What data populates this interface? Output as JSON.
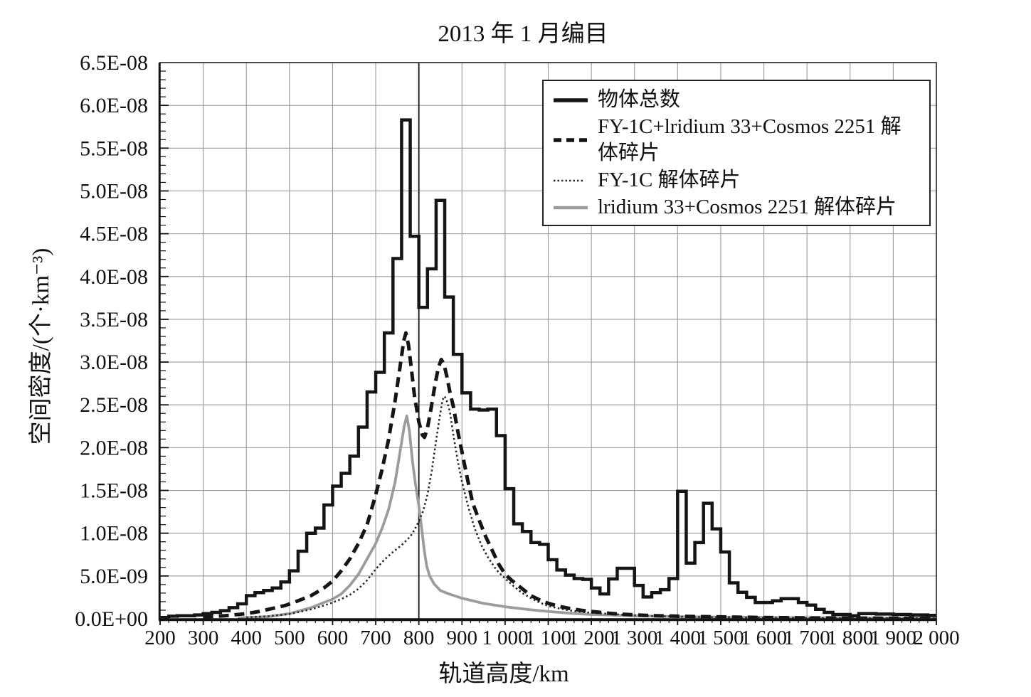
{
  "title": "2013 年 1 月编目",
  "axes": {
    "xlabel": "轨道高度/km",
    "ylabel": "空间密度/(个·km⁻³)",
    "x_tick_labels": [
      "200",
      "300",
      "400",
      "500",
      "600",
      "700",
      "800",
      "900",
      "1 000",
      "1 100",
      "1 200",
      "1 300",
      "1 400",
      "1 500",
      "1 600",
      "1 700",
      "1 800",
      "1 900",
      "2 000"
    ],
    "y_tick_labels": [
      "0.0E+00",
      "5.0E-09",
      "1.0E-08",
      "1.5E-08",
      "2.0E-08",
      "2.5E-08",
      "3.0E-08",
      "3.5E-08",
      "4.0E-08",
      "4.5E-08",
      "5.0E-08",
      "5.5E-08",
      "6.0E-08",
      "6.5E-08"
    ]
  },
  "legend": {
    "items": [
      {
        "label": "物体总数",
        "series": "total"
      },
      {
        "label": "FY-1C+lridium 33+Cosmos 2251 解体碎片",
        "series": "combined_fragments"
      },
      {
        "label": "FY-1C 解体碎片",
        "series": "fy1c_fragments"
      },
      {
        "label": "lridium 33+Cosmos 2251 解体碎片",
        "series": "iridium_cosmos_fragments"
      }
    ]
  },
  "colors": {
    "black": "#151515",
    "gray_line": "#9c9c9c",
    "grid": "#9a9a9a",
    "reference_line": "#111111"
  },
  "chart_data": {
    "type": "line",
    "title": "2013 年 1 月编目",
    "xlabel": "轨道高度/km",
    "ylabel": "空间密度/(个·km⁻³)",
    "xlim": [
      200,
      2000
    ],
    "ylim": [
      0,
      6.5e-08
    ],
    "x_major_tick_km": 100,
    "x_minor_tick_km": 20,
    "y_major_tick": 5e-09,
    "y_minor_tick": 1e-09,
    "grid": true,
    "legend_position": "top-right",
    "reference_vline_km": 800,
    "value_scale": 1e-09,
    "series": [
      {
        "name": "物体总数",
        "style": "step",
        "color": "#151515",
        "bin_start_km": 200,
        "bin_width_km": 20,
        "values_1e9": [
          0.15,
          0.3,
          0.35,
          0.35,
          0.45,
          0.6,
          0.75,
          0.95,
          1.3,
          1.75,
          2.7,
          3.05,
          3.3,
          3.6,
          4.3,
          5.6,
          7.9,
          10,
          10.6,
          13.3,
          15.5,
          17,
          19,
          22.4,
          26.5,
          28.8,
          33.4,
          42.1,
          58.3,
          44.7,
          36.4,
          40.9,
          48.9,
          37.6,
          30.9,
          26.4,
          24.5,
          24.4,
          24.5,
          21.4,
          15.2,
          11.1,
          10.2,
          8.9,
          8.7,
          6.9,
          5.7,
          5.1,
          4.7,
          4.6,
          3.6,
          2.9,
          4.65,
          5.9,
          5.9,
          3.9,
          2.55,
          3.05,
          3.4,
          4.7,
          14.9,
          6.5,
          8.9,
          13.5,
          10.5,
          7.8,
          4.2,
          3.1,
          2.5,
          1.9,
          1.9,
          2.1,
          2.35,
          2.35,
          1.9,
          1.6,
          1.1,
          0.75,
          0.5,
          0.5,
          0.35,
          0.6,
          0.6,
          0.55,
          0.55,
          0.5,
          0.5,
          0.45,
          0.45,
          0.4
        ]
      },
      {
        "name": "FY-1C+lridium 33+Cosmos 2251 解体碎片",
        "style": "dashed",
        "color": "#151515",
        "points_km_1e9": [
          [
            300,
            0.2
          ],
          [
            350,
            0.35
          ],
          [
            400,
            0.6
          ],
          [
            430,
            0.85
          ],
          [
            460,
            1.2
          ],
          [
            490,
            1.55
          ],
          [
            520,
            2.1
          ],
          [
            550,
            2.7
          ],
          [
            580,
            3.6
          ],
          [
            600,
            4.4
          ],
          [
            620,
            5.6
          ],
          [
            640,
            7
          ],
          [
            660,
            8.8
          ],
          [
            680,
            11
          ],
          [
            700,
            14.5
          ],
          [
            715,
            17.5
          ],
          [
            730,
            21
          ],
          [
            745,
            25.5
          ],
          [
            758,
            30
          ],
          [
            765,
            32.5
          ],
          [
            770,
            33.4
          ],
          [
            776,
            32
          ],
          [
            782,
            29.5
          ],
          [
            790,
            26
          ],
          [
            800,
            23
          ],
          [
            808,
            21.5
          ],
          [
            813,
            21.2
          ],
          [
            820,
            22.3
          ],
          [
            828,
            24.5
          ],
          [
            838,
            27.5
          ],
          [
            845,
            29.3
          ],
          [
            852,
            30.3
          ],
          [
            858,
            29.8
          ],
          [
            865,
            28.3
          ],
          [
            872,
            26.5
          ],
          [
            880,
            24.8
          ],
          [
            890,
            22
          ],
          [
            900,
            19.5
          ],
          [
            912,
            16.5
          ],
          [
            925,
            13.5
          ],
          [
            940,
            11.5
          ],
          [
            955,
            9.6
          ],
          [
            970,
            8
          ],
          [
            985,
            6.4
          ],
          [
            1000,
            5.2
          ],
          [
            1015,
            4.5
          ],
          [
            1030,
            3.9
          ],
          [
            1045,
            3.3
          ],
          [
            1060,
            2.7
          ],
          [
            1080,
            2.2
          ],
          [
            1100,
            1.8
          ],
          [
            1125,
            1.45
          ],
          [
            1150,
            1.2
          ],
          [
            1175,
            1
          ],
          [
            1200,
            0.85
          ],
          [
            1250,
            0.6
          ],
          [
            1300,
            0.45
          ],
          [
            1350,
            0.35
          ],
          [
            1400,
            0.3
          ],
          [
            1450,
            0.25
          ],
          [
            1500,
            0.22
          ],
          [
            1550,
            0.18
          ],
          [
            1600,
            0.15
          ],
          [
            1650,
            0.12
          ],
          [
            1700,
            0.1
          ],
          [
            1750,
            0.09
          ],
          [
            1800,
            0.08
          ],
          [
            1850,
            0.07
          ],
          [
            1900,
            0.06
          ],
          [
            1950,
            0.055
          ],
          [
            2000,
            0.05
          ]
        ]
      },
      {
        "name": "FY-1C 解体碎片",
        "style": "dotted",
        "color": "#2a2a2a",
        "points_km_1e9": [
          [
            400,
            0.15
          ],
          [
            450,
            0.3
          ],
          [
            500,
            0.55
          ],
          [
            550,
            1.1
          ],
          [
            580,
            1.55
          ],
          [
            600,
            1.9
          ],
          [
            620,
            2.3
          ],
          [
            640,
            2.8
          ],
          [
            660,
            3.5
          ],
          [
            680,
            4.5
          ],
          [
            700,
            5.8
          ],
          [
            720,
            6.9
          ],
          [
            740,
            7.8
          ],
          [
            760,
            8.6
          ],
          [
            780,
            9.6
          ],
          [
            790,
            10.4
          ],
          [
            800,
            11.4
          ],
          [
            810,
            12.6
          ],
          [
            820,
            14.5
          ],
          [
            830,
            17.3
          ],
          [
            840,
            20.8
          ],
          [
            848,
            23.5
          ],
          [
            855,
            25.6
          ],
          [
            860,
            26
          ],
          [
            866,
            25.3
          ],
          [
            872,
            24.2
          ],
          [
            880,
            21.5
          ],
          [
            890,
            18.5
          ],
          [
            900,
            16
          ],
          [
            915,
            13
          ],
          [
            930,
            10.5
          ],
          [
            945,
            8.6
          ],
          [
            960,
            7.2
          ],
          [
            980,
            5.7
          ],
          [
            1000,
            4.7
          ],
          [
            1020,
            3.8
          ],
          [
            1040,
            3
          ],
          [
            1060,
            2.4
          ],
          [
            1080,
            1.9
          ],
          [
            1100,
            1.5
          ],
          [
            1130,
            1.15
          ],
          [
            1160,
            0.9
          ],
          [
            1200,
            0.7
          ],
          [
            1250,
            0.55
          ],
          [
            1300,
            0.4
          ],
          [
            1350,
            0.3
          ],
          [
            1400,
            0.25
          ],
          [
            1450,
            0.2
          ],
          [
            1500,
            0.18
          ],
          [
            1550,
            0.15
          ],
          [
            1600,
            0.12
          ],
          [
            1700,
            0.1
          ],
          [
            1800,
            0.08
          ],
          [
            1900,
            0.06
          ],
          [
            2000,
            0.05
          ]
        ]
      },
      {
        "name": "lridium 33+Cosmos 2251 解体碎片",
        "style": "solid",
        "color": "#9c9c9c",
        "points_km_1e9": [
          [
            380,
            0.1
          ],
          [
            450,
            0.25
          ],
          [
            500,
            0.6
          ],
          [
            550,
            1.3
          ],
          [
            580,
            1.9
          ],
          [
            600,
            2.3
          ],
          [
            620,
            2.9
          ],
          [
            640,
            3.9
          ],
          [
            660,
            5.2
          ],
          [
            680,
            7
          ],
          [
            700,
            8.8
          ],
          [
            715,
            10.6
          ],
          [
            730,
            12.8
          ],
          [
            745,
            16
          ],
          [
            758,
            20
          ],
          [
            766,
            22.5
          ],
          [
            772,
            23.7
          ],
          [
            778,
            22
          ],
          [
            785,
            18.5
          ],
          [
            792,
            15.8
          ],
          [
            800,
            13.2
          ],
          [
            806,
            10.8
          ],
          [
            812,
            8.2
          ],
          [
            818,
            6.2
          ],
          [
            825,
            5
          ],
          [
            835,
            4.1
          ],
          [
            850,
            3.3
          ],
          [
            870,
            2.9
          ],
          [
            900,
            2.4
          ],
          [
            950,
            1.8
          ],
          [
            1000,
            1.4
          ],
          [
            1050,
            1.1
          ],
          [
            1100,
            0.85
          ],
          [
            1150,
            0.65
          ],
          [
            1200,
            0.5
          ],
          [
            1300,
            0.35
          ],
          [
            1400,
            0.25
          ],
          [
            1500,
            0.2
          ],
          [
            1600,
            0.15
          ],
          [
            1700,
            0.12
          ],
          [
            1800,
            0.1
          ],
          [
            1900,
            0.08
          ],
          [
            2000,
            0.07
          ]
        ]
      }
    ]
  }
}
